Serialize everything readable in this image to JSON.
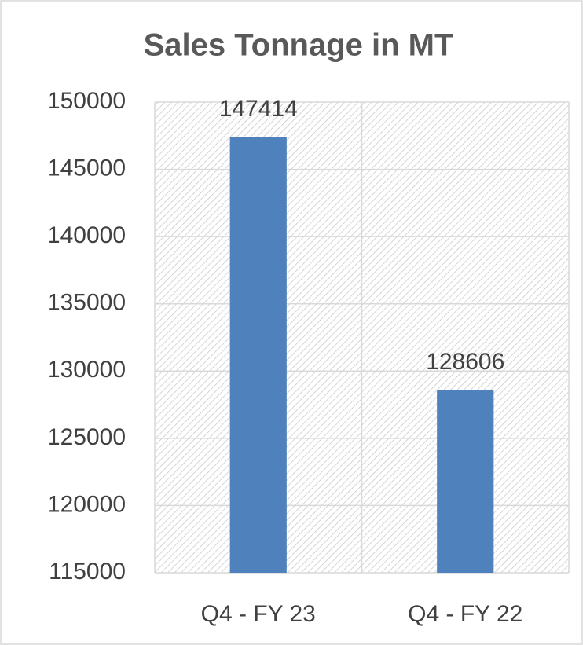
{
  "chart_data": {
    "type": "bar",
    "title": "Sales Tonnage in MT",
    "categories": [
      "Q4 - FY 23",
      "Q4 - FY 22"
    ],
    "values": [
      147414,
      128606
    ],
    "color": "#4f81bd",
    "ylim": [
      115000,
      150000
    ],
    "yticks": [
      115000,
      120000,
      125000,
      130000,
      135000,
      140000,
      145000,
      150000
    ],
    "grid": true,
    "data_labels": true
  }
}
